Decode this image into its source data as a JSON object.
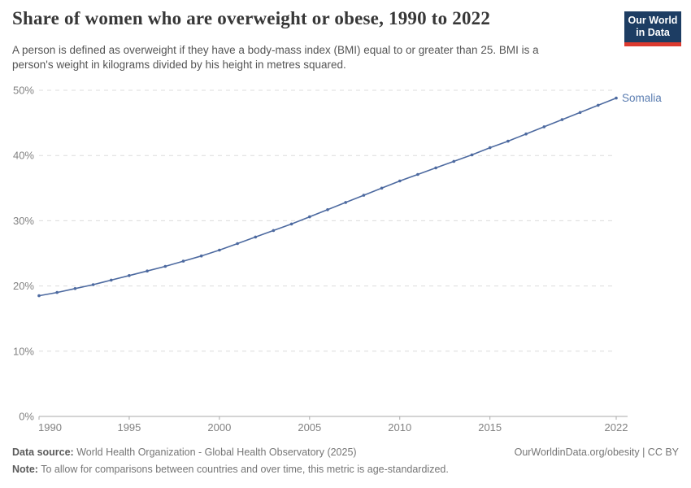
{
  "header": {
    "title": "Share of women who are overweight or obese, 1990 to 2022",
    "subtitle_lines": [
      "A person is defined as overweight if they have a body-mass index (BMI) equal to or greater than 25. BMI is a",
      "person's weight in kilograms divided by his height in metres squared."
    ]
  },
  "logo": {
    "line1": "Our World",
    "line2": "in Data",
    "bg_color": "#1d3d63",
    "stripe_color": "#dc3a2f"
  },
  "colors": {
    "title": "#373737",
    "line": "#4d6aa0",
    "series_label": "#5b7db1",
    "gridline": "#dcdcdc",
    "axis": "#a9a9a9",
    "tick_text": "#828282"
  },
  "chart_data": {
    "type": "line",
    "title": "Share of women who are overweight or obese, 1990 to 2022",
    "xlabel": "",
    "ylabel": "",
    "xlim": [
      1990,
      2022
    ],
    "ylim": [
      0,
      50
    ],
    "x_ticks": [
      1990,
      1995,
      2000,
      2005,
      2010,
      2015,
      2022
    ],
    "y_ticks": [
      0,
      10,
      20,
      30,
      40,
      50
    ],
    "y_tick_suffix": "%",
    "grid": "horizontal-dashed",
    "legend_position": "end-of-line-label",
    "series": [
      {
        "name": "Somalia",
        "x": [
          1990,
          1991,
          1992,
          1993,
          1994,
          1995,
          1996,
          1997,
          1998,
          1999,
          2000,
          2001,
          2002,
          2003,
          2004,
          2005,
          2006,
          2007,
          2008,
          2009,
          2010,
          2011,
          2012,
          2013,
          2014,
          2015,
          2016,
          2017,
          2018,
          2019,
          2020,
          2021,
          2022
        ],
        "values": [
          18.5,
          19.0,
          19.6,
          20.2,
          20.9,
          21.6,
          22.3,
          23.0,
          23.8,
          24.6,
          25.5,
          26.5,
          27.5,
          28.5,
          29.5,
          30.6,
          31.7,
          32.8,
          33.9,
          35.0,
          36.1,
          37.1,
          38.1,
          39.1,
          40.1,
          41.2,
          42.2,
          43.3,
          44.4,
          45.5,
          46.6,
          47.7,
          48.8
        ]
      }
    ]
  },
  "footer": {
    "datasource_label": "Data source:",
    "datasource_text": " World Health Organization - Global Health Observatory (2025)",
    "note_label": "Note:",
    "note_text": " To allow for comparisons between countries and over time, this metric is age-standardized.",
    "right_text": "OurWorldinData.org/obesity | CC BY"
  }
}
